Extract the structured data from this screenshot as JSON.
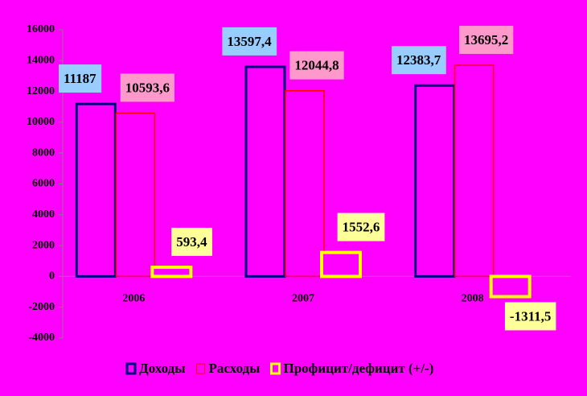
{
  "chart_data": {
    "type": "bar",
    "categories": [
      "2006",
      "2007",
      "2008"
    ],
    "series": [
      {
        "name": "Доходы",
        "color": "#000080",
        "label_bg": "#99ccff",
        "values": [
          11187,
          13597.4,
          12383.7
        ],
        "value_labels": [
          "11187",
          "13597,4",
          "12383,7"
        ]
      },
      {
        "name": "Расходы",
        "color": "#ff0000",
        "label_bg": "#ff99cc",
        "values": [
          10593.6,
          12044.8,
          13695.2
        ],
        "value_labels": [
          "10593,6",
          "12044,8",
          "13695,2"
        ]
      },
      {
        "name": "Профицит/дефицит (+/-)",
        "color": "#ffff00",
        "label_bg": "#ffff99",
        "values": [
          593.4,
          1552.6,
          -1311.5
        ],
        "value_labels": [
          "593,4",
          "1552,6",
          "-1311,5"
        ]
      }
    ],
    "ylim": [
      -4000,
      16000
    ],
    "yticks": [
      -4000,
      -2000,
      0,
      2000,
      4000,
      6000,
      8000,
      10000,
      12000,
      14000,
      16000
    ],
    "background": "#ff00ff"
  }
}
